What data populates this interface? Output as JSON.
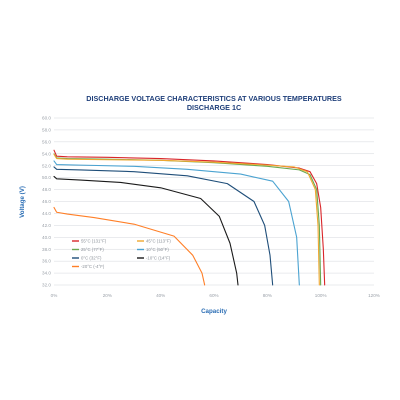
{
  "chart_data": {
    "type": "line",
    "title": "DISCHARGE VOLTAGE CHARACTERISTICS AT VARIOUS TEMPERATURES",
    "subtitle": "DISCHARGE 1C",
    "xlabel": "Capacity",
    "ylabel": "Voltage (V)",
    "xlim": [
      0,
      120
    ],
    "ylim": [
      32.0,
      60.0
    ],
    "x_ticks": [
      "0%",
      "20%",
      "40%",
      "60%",
      "80%",
      "100%",
      "120%"
    ],
    "y_ticks": [
      "32.0",
      "34.0",
      "36.0",
      "38.0",
      "40.0",
      "42.0",
      "44.0",
      "46.0",
      "48.0",
      "50.0",
      "52.0",
      "54.0",
      "56.0",
      "58.0",
      "60.0"
    ],
    "grid": true,
    "legend_position": "bottom-left",
    "series": [
      {
        "name": "55°C (131°F)",
        "color": "#d9262a",
        "points": [
          [
            0,
            54.6
          ],
          [
            1,
            53.6
          ],
          [
            5,
            53.5
          ],
          [
            20,
            53.4
          ],
          [
            40,
            53.2
          ],
          [
            60,
            52.8
          ],
          [
            80,
            52.2
          ],
          [
            92,
            51.6
          ],
          [
            96,
            51.0
          ],
          [
            98.5,
            49.0
          ],
          [
            100,
            45.0
          ],
          [
            101,
            38.0
          ],
          [
            101.5,
            32.0
          ]
        ]
      },
      {
        "name": "25°C (77°F)",
        "color": "#6aa84f",
        "points": [
          [
            0,
            54.0
          ],
          [
            1,
            53.3
          ],
          [
            5,
            53.2
          ],
          [
            20,
            53.1
          ],
          [
            40,
            52.9
          ],
          [
            60,
            52.5
          ],
          [
            80,
            51.9
          ],
          [
            92,
            51.3
          ],
          [
            96,
            50.5
          ],
          [
            98.5,
            48.0
          ],
          [
            99.5,
            42.0
          ],
          [
            100,
            32.0
          ]
        ]
      },
      {
        "name": "0°C (32°F)",
        "color": "#1f4e79",
        "points": [
          [
            0,
            51.8
          ],
          [
            1,
            51.4
          ],
          [
            10,
            51.3
          ],
          [
            30,
            51.0
          ],
          [
            50,
            50.3
          ],
          [
            65,
            49.0
          ],
          [
            75,
            46.0
          ],
          [
            79,
            42.0
          ],
          [
            81,
            37.0
          ],
          [
            82,
            32.0
          ]
        ]
      },
      {
        "name": "-20°C (-4°F)",
        "color": "#ff7f27",
        "points": [
          [
            0,
            45.0
          ],
          [
            1,
            44.2
          ],
          [
            5,
            43.9
          ],
          [
            15,
            43.3
          ],
          [
            30,
            42.2
          ],
          [
            45,
            40.2
          ],
          [
            52,
            37.0
          ],
          [
            55.5,
            34.0
          ],
          [
            56.5,
            32.0
          ]
        ]
      },
      {
        "name": "45°C (113°F)",
        "color": "#f0a830",
        "points": [
          [
            0,
            53.9
          ],
          [
            1,
            53.2
          ],
          [
            5,
            53.1
          ],
          [
            20,
            53.0
          ],
          [
            40,
            52.9
          ],
          [
            60,
            52.6
          ],
          [
            80,
            52.1
          ],
          [
            90,
            51.8
          ],
          [
            95,
            51.0
          ],
          [
            98,
            48.0
          ],
          [
            99,
            42.0
          ],
          [
            99.5,
            32.0
          ]
        ]
      },
      {
        "name": "10°C (50°F)",
        "color": "#4ba3d1",
        "points": [
          [
            0,
            52.8
          ],
          [
            1,
            52.2
          ],
          [
            10,
            52.1
          ],
          [
            30,
            51.9
          ],
          [
            50,
            51.4
          ],
          [
            70,
            50.6
          ],
          [
            82,
            49.4
          ],
          [
            88,
            46.0
          ],
          [
            91,
            40.0
          ],
          [
            92,
            32.0
          ]
        ]
      },
      {
        "name": "-10°C (14°F)",
        "color": "#1a1a1a",
        "points": [
          [
            0,
            50.2
          ],
          [
            1,
            49.8
          ],
          [
            10,
            49.6
          ],
          [
            25,
            49.2
          ],
          [
            40,
            48.3
          ],
          [
            55,
            46.5
          ],
          [
            62,
            43.5
          ],
          [
            66,
            39.0
          ],
          [
            68.5,
            34.0
          ],
          [
            69,
            32.0
          ]
        ]
      }
    ]
  }
}
